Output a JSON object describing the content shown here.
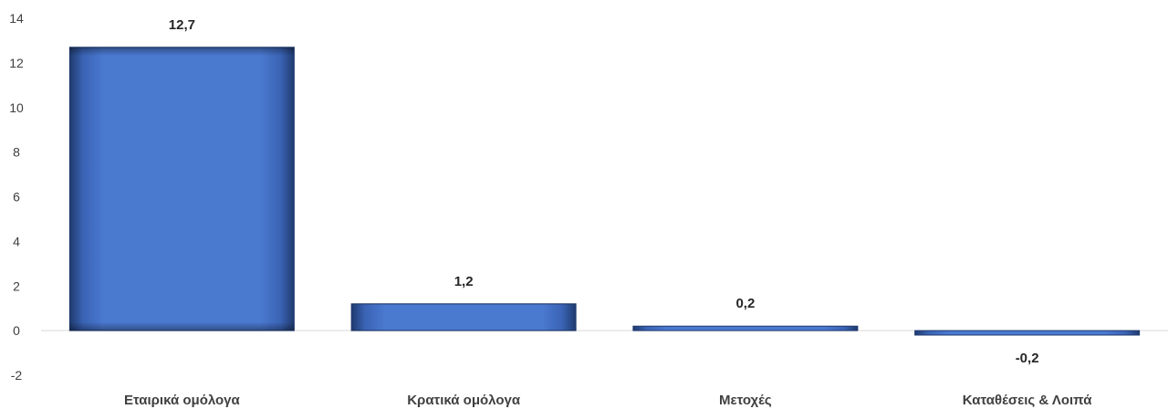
{
  "chart_data": {
    "type": "bar",
    "categories": [
      "Εταιρικά ομόλογα",
      "Κρατικά ομόλογα",
      "Μετοχές",
      "Καταθέσεις & Λοιπά"
    ],
    "values": [
      12.7,
      1.2,
      0.2,
      -0.2
    ],
    "data_labels": [
      "12,7",
      "1,2",
      "0,2",
      "-0,2"
    ],
    "yticks": [
      -2,
      0,
      2,
      4,
      6,
      8,
      10,
      12,
      14
    ],
    "ytick_labels": [
      "-2",
      "0",
      "2",
      "4",
      "6",
      "8",
      "10",
      "12",
      "14"
    ],
    "ylim": [
      -2,
      14
    ],
    "title": "",
    "xlabel": "",
    "ylabel": "",
    "grid": false,
    "legend": "none",
    "bar_color": "#4a76cc",
    "bar_edge_color": "#1f3a6e",
    "baseline_color": "#d9d9d9"
  }
}
